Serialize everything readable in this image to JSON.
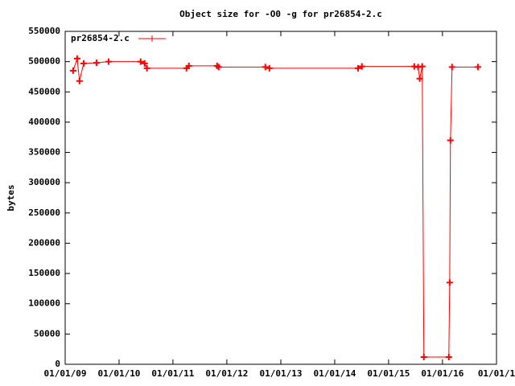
{
  "chart_data": {
    "type": "line",
    "title": "Object size for -O0 -g for pr26854-2.c",
    "y_label": "bytes",
    "legend": "top-left",
    "x": [
      "2009-02-24",
      "2009-03-23",
      "2009-04-08",
      "2009-05-06",
      "2009-08-01",
      "2009-10-22",
      "2010-05-27",
      "2010-06-23",
      "2010-07-09",
      "2011-04-03",
      "2011-04-19",
      "2011-10-27",
      "2011-11-07",
      "2012-09-18",
      "2012-10-16",
      "2014-06-08",
      "2014-07-04",
      "2015-06-24",
      "2015-07-20",
      "2015-07-31",
      "2015-08-17",
      "2015-08-28",
      "2016-02-13",
      "2016-02-19",
      "2016-02-24",
      "2016-03-06",
      "2016-08-28"
    ],
    "series": [
      {
        "name": "pr26854-2.c",
        "color": "#ff0000",
        "values": [
          485000,
          505000,
          468000,
          497000,
          498000,
          500000,
          500000,
          497000,
          489000,
          489000,
          493000,
          493000,
          491000,
          491000,
          489000,
          489000,
          492000,
          492000,
          491000,
          472000,
          492000,
          12000,
          12000,
          135000,
          370000,
          491000,
          491000
        ]
      }
    ],
    "xlim": [
      "2009-01-01",
      "2017-01-01"
    ],
    "xticks": [
      {
        "value": "2009-01-01",
        "label": "01/01/09"
      },
      {
        "value": "2010-01-01",
        "label": "01/01/10"
      },
      {
        "value": "2011-01-01",
        "label": "01/01/11"
      },
      {
        "value": "2012-01-01",
        "label": "01/01/12"
      },
      {
        "value": "2013-01-01",
        "label": "01/01/13"
      },
      {
        "value": "2014-01-01",
        "label": "01/01/14"
      },
      {
        "value": "2015-01-01",
        "label": "01/01/15"
      },
      {
        "value": "2016-01-01",
        "label": "01/01/16"
      },
      {
        "value": "2017-01-01",
        "label": "01/01/1"
      }
    ],
    "ylim": [
      0,
      550000
    ],
    "yticks": [
      0,
      50000,
      100000,
      150000,
      200000,
      250000,
      300000,
      350000,
      400000,
      450000,
      500000,
      550000
    ]
  }
}
